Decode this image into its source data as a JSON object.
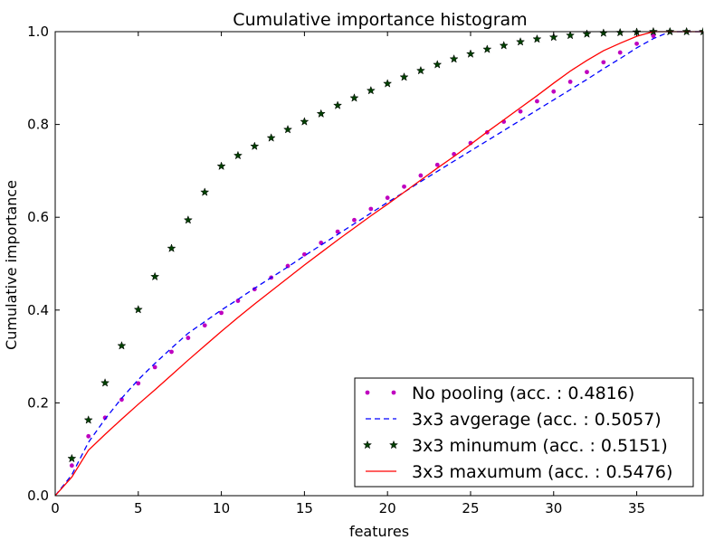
{
  "chart_data": {
    "type": "line",
    "title": "Cumulative importance histogram",
    "xlabel": "features",
    "ylabel": "Cumulative importance",
    "xlim": [
      0,
      39
    ],
    "ylim": [
      0,
      1
    ],
    "xticks": [
      0,
      5,
      10,
      15,
      20,
      25,
      30,
      35
    ],
    "yticks": [
      0.0,
      0.2,
      0.4,
      0.6,
      0.8,
      1.0
    ],
    "xtick_labels": [
      "0",
      "5",
      "10",
      "15",
      "20",
      "25",
      "30",
      "35"
    ],
    "ytick_labels": [
      "0.0",
      "0.2",
      "0.4",
      "0.6",
      "0.8",
      "1.0"
    ],
    "legend_position": "lower-right",
    "series": [
      {
        "name": "No pooling (acc. : 0.4816)",
        "style": "dots",
        "color": "#bf00bf",
        "x": [
          1,
          2,
          3,
          4,
          5,
          6,
          7,
          8,
          9,
          10,
          11,
          12,
          13,
          14,
          15,
          16,
          17,
          18,
          19,
          20,
          21,
          22,
          23,
          24,
          25,
          26,
          27,
          28,
          29,
          30,
          31,
          32,
          33,
          34,
          35,
          36,
          37,
          38,
          39
        ],
        "y": [
          0.065,
          0.128,
          0.168,
          0.207,
          0.242,
          0.277,
          0.31,
          0.34,
          0.367,
          0.394,
          0.42,
          0.445,
          0.47,
          0.495,
          0.52,
          0.545,
          0.569,
          0.594,
          0.618,
          0.642,
          0.666,
          0.69,
          0.713,
          0.736,
          0.76,
          0.783,
          0.806,
          0.828,
          0.85,
          0.871,
          0.892,
          0.913,
          0.934,
          0.955,
          0.974,
          0.991,
          1.0,
          1.0,
          1.0
        ]
      },
      {
        "name": "3x3 avgerage (acc. : 0.5057)",
        "style": "dashed",
        "color": "#0000ff",
        "x": [
          0,
          1,
          2,
          3,
          4,
          5,
          6,
          7,
          8,
          9,
          10,
          11,
          12,
          13,
          14,
          15,
          16,
          17,
          18,
          19,
          20,
          21,
          22,
          23,
          24,
          25,
          26,
          27,
          28,
          29,
          30,
          31,
          32,
          33,
          34,
          35,
          36,
          37,
          38,
          39
        ],
        "y": [
          0.0,
          0.045,
          0.115,
          0.165,
          0.21,
          0.25,
          0.285,
          0.318,
          0.35,
          0.375,
          0.4,
          0.423,
          0.447,
          0.47,
          0.493,
          0.517,
          0.54,
          0.563,
          0.586,
          0.609,
          0.632,
          0.654,
          0.677,
          0.699,
          0.721,
          0.743,
          0.765,
          0.787,
          0.809,
          0.831,
          0.853,
          0.875,
          0.897,
          0.92,
          0.942,
          0.965,
          0.985,
          1.0,
          1.0,
          1.0
        ]
      },
      {
        "name": "3x3 minumum (acc. : 0.5151)",
        "style": "stars",
        "color": "#004000",
        "x": [
          1,
          2,
          3,
          4,
          5,
          6,
          7,
          8,
          9,
          10,
          11,
          12,
          13,
          14,
          15,
          16,
          17,
          18,
          19,
          20,
          21,
          22,
          23,
          24,
          25,
          26,
          27,
          28,
          29,
          30,
          31,
          32,
          33,
          34,
          35,
          36,
          37,
          38,
          39
        ],
        "y": [
          0.08,
          0.163,
          0.243,
          0.323,
          0.401,
          0.472,
          0.533,
          0.594,
          0.654,
          0.71,
          0.733,
          0.753,
          0.771,
          0.789,
          0.806,
          0.823,
          0.841,
          0.857,
          0.873,
          0.888,
          0.902,
          0.916,
          0.929,
          0.941,
          0.952,
          0.962,
          0.97,
          0.978,
          0.984,
          0.988,
          0.992,
          0.995,
          0.997,
          0.998,
          0.999,
          1.0,
          1.0,
          1.0,
          1.0
        ]
      },
      {
        "name": "3x3 maxumum (acc. : 0.5476)",
        "style": "solid",
        "color": "#ff0000",
        "x": [
          0,
          1,
          2,
          3,
          4,
          5,
          6,
          7,
          8,
          9,
          10,
          11,
          12,
          13,
          14,
          15,
          16,
          17,
          18,
          19,
          20,
          21,
          22,
          23,
          24,
          25,
          26,
          27,
          28,
          29,
          30,
          31,
          32,
          33,
          34,
          35,
          36,
          37,
          38,
          39
        ],
        "y": [
          0.0,
          0.04,
          0.098,
          0.132,
          0.165,
          0.197,
          0.228,
          0.26,
          0.292,
          0.323,
          0.354,
          0.384,
          0.413,
          0.441,
          0.469,
          0.497,
          0.524,
          0.551,
          0.577,
          0.603,
          0.628,
          0.654,
          0.68,
          0.706,
          0.731,
          0.757,
          0.784,
          0.81,
          0.836,
          0.862,
          0.889,
          0.915,
          0.938,
          0.959,
          0.975,
          0.99,
          1.0,
          1.0,
          1.0,
          1.0
        ]
      }
    ]
  }
}
